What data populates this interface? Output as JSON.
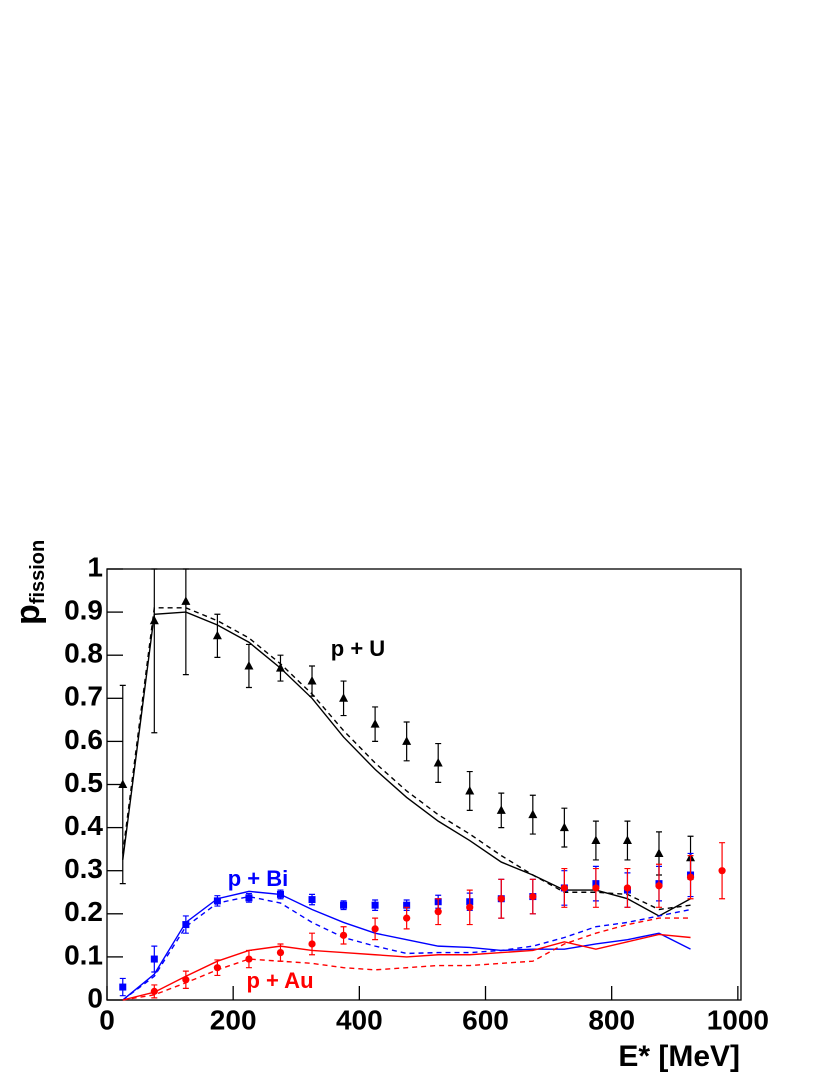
{
  "chart_data": {
    "type": "scatter",
    "x_label": "E* [MeV]",
    "y_label": "p",
    "y_label_sub": "fission",
    "xlim": [
      0,
      1005
    ],
    "ylim": [
      0,
      1
    ],
    "xticks": [
      0,
      200,
      400,
      600,
      800,
      1000
    ],
    "yticks": [
      0,
      0.1,
      0.2,
      0.3,
      0.4,
      0.5,
      0.6,
      0.7,
      0.8,
      0.9,
      1
    ],
    "series": [
      {
        "name": "p + U",
        "color": "#000000",
        "marker": "triangle",
        "x": [
          25,
          75,
          125,
          175,
          225,
          275,
          325,
          375,
          425,
          475,
          525,
          575,
          625,
          675,
          725,
          775,
          825,
          875,
          925
        ],
        "values": [
          0.5,
          0.88,
          0.925,
          0.845,
          0.775,
          0.77,
          0.74,
          0.7,
          0.64,
          0.6,
          0.55,
          0.485,
          0.44,
          0.43,
          0.4,
          0.37,
          0.37,
          0.34,
          0.33
        ],
        "errors": [
          0.23,
          0.26,
          0.17,
          0.05,
          0.05,
          0.03,
          0.035,
          0.04,
          0.04,
          0.045,
          0.045,
          0.045,
          0.04,
          0.045,
          0.045,
          0.045,
          0.045,
          0.05,
          0.05
        ]
      },
      {
        "name": "p + Bi",
        "color": "#0000ff",
        "marker": "square",
        "x": [
          25,
          75,
          125,
          175,
          225,
          275,
          325,
          375,
          425,
          475,
          525,
          575,
          625,
          675,
          725,
          775,
          825,
          875,
          925
        ],
        "values": [
          0.03,
          0.095,
          0.175,
          0.23,
          0.237,
          0.245,
          0.233,
          0.22,
          0.22,
          0.22,
          0.228,
          0.228,
          0.235,
          0.24,
          0.26,
          0.27,
          0.255,
          0.27,
          0.29
        ],
        "errors": [
          0.02,
          0.03,
          0.02,
          0.012,
          0.01,
          0.01,
          0.012,
          0.01,
          0.012,
          0.012,
          0.015,
          0.02,
          0.045,
          0.04,
          0.04,
          0.04,
          0.04,
          0.04,
          0.05
        ]
      },
      {
        "name": "p + Au",
        "color": "#ff0000",
        "marker": "circle",
        "x": [
          75,
          125,
          175,
          225,
          275,
          325,
          375,
          425,
          475,
          525,
          575,
          625,
          675,
          725,
          775,
          825,
          875,
          925,
          975
        ],
        "values": [
          0.02,
          0.047,
          0.075,
          0.095,
          0.11,
          0.13,
          0.15,
          0.165,
          0.19,
          0.205,
          0.215,
          0.235,
          0.24,
          0.26,
          0.26,
          0.26,
          0.265,
          0.285,
          0.3
        ],
        "errors": [
          0.015,
          0.02,
          0.018,
          0.02,
          0.02,
          0.025,
          0.02,
          0.025,
          0.025,
          0.03,
          0.04,
          0.045,
          0.04,
          0.045,
          0.045,
          0.045,
          0.05,
          0.05,
          0.065
        ]
      }
    ],
    "lines": [
      {
        "color": "#000000",
        "dashed": false,
        "x": [
          25,
          75,
          125,
          175,
          225,
          275,
          325,
          375,
          425,
          475,
          525,
          575,
          625,
          675,
          725,
          775,
          825,
          875,
          925
        ],
        "values": [
          0.325,
          0.895,
          0.9,
          0.87,
          0.83,
          0.77,
          0.7,
          0.61,
          0.535,
          0.47,
          0.415,
          0.37,
          0.32,
          0.29,
          0.255,
          0.255,
          0.235,
          0.195,
          0.235
        ]
      },
      {
        "color": "#000000",
        "dashed": true,
        "x": [
          25,
          75,
          125,
          175,
          225,
          275,
          325,
          375,
          425,
          475,
          525,
          575,
          625,
          675,
          725,
          775,
          825,
          875,
          925
        ],
        "values": [
          0.34,
          0.91,
          0.91,
          0.88,
          0.84,
          0.78,
          0.71,
          0.625,
          0.55,
          0.485,
          0.43,
          0.385,
          0.335,
          0.29,
          0.25,
          0.25,
          0.245,
          0.21,
          0.22
        ]
      },
      {
        "color": "#0000ff",
        "dashed": false,
        "x": [
          25,
          75,
          125,
          175,
          225,
          275,
          325,
          375,
          425,
          475,
          525,
          575,
          625,
          675,
          725,
          775,
          825,
          875,
          925
        ],
        "values": [
          0.0,
          0.06,
          0.18,
          0.235,
          0.252,
          0.245,
          0.21,
          0.18,
          0.155,
          0.14,
          0.125,
          0.122,
          0.115,
          0.118,
          0.118,
          0.13,
          0.14,
          0.155,
          0.118
        ]
      },
      {
        "color": "#0000ff",
        "dashed": true,
        "x": [
          25,
          75,
          125,
          175,
          225,
          275,
          325,
          375,
          425,
          475,
          525,
          575,
          625,
          675,
          725,
          775,
          825,
          875,
          925
        ],
        "values": [
          0.0,
          0.055,
          0.17,
          0.225,
          0.24,
          0.225,
          0.18,
          0.145,
          0.125,
          0.108,
          0.11,
          0.11,
          0.115,
          0.125,
          0.145,
          0.17,
          0.18,
          0.195,
          0.21
        ]
      },
      {
        "color": "#ff0000",
        "dashed": false,
        "x": [
          25,
          75,
          125,
          175,
          225,
          275,
          325,
          375,
          425,
          475,
          525,
          575,
          625,
          675,
          725,
          775,
          825,
          875,
          925
        ],
        "values": [
          0.0,
          0.018,
          0.055,
          0.09,
          0.115,
          0.125,
          0.115,
          0.11,
          0.105,
          0.1,
          0.105,
          0.105,
          0.11,
          0.115,
          0.135,
          0.118,
          0.135,
          0.152,
          0.145
        ]
      },
      {
        "color": "#ff0000",
        "dashed": true,
        "x": [
          25,
          75,
          125,
          175,
          225,
          275,
          325,
          375,
          425,
          475,
          525,
          575,
          625,
          675,
          725,
          775,
          825,
          875,
          925
        ],
        "values": [
          0.0,
          0.012,
          0.04,
          0.07,
          0.095,
          0.09,
          0.085,
          0.075,
          0.07,
          0.075,
          0.08,
          0.08,
          0.085,
          0.09,
          0.13,
          0.155,
          0.175,
          0.19,
          0.19
        ]
      }
    ]
  }
}
